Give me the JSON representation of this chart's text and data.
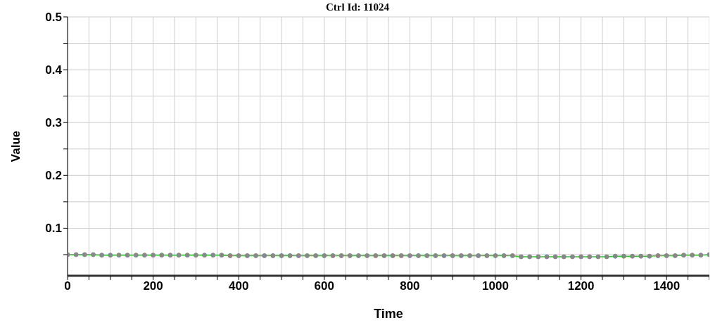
{
  "chart_data": {
    "type": "line",
    "title": "Ctrl Id: 11024",
    "xlabel": "Time",
    "ylabel": "Value",
    "x": [
      0,
      20,
      40,
      60,
      80,
      100,
      120,
      140,
      160,
      180,
      200,
      220,
      240,
      260,
      280,
      300,
      320,
      340,
      360,
      380,
      400,
      420,
      440,
      460,
      480,
      500,
      520,
      540,
      560,
      580,
      600,
      620,
      640,
      660,
      680,
      700,
      720,
      740,
      760,
      780,
      800,
      820,
      840,
      860,
      880,
      900,
      920,
      940,
      960,
      980,
      1000,
      1020,
      1040,
      1060,
      1080,
      1100,
      1120,
      1140,
      1160,
      1180,
      1200,
      1220,
      1240,
      1260,
      1280,
      1300,
      1320,
      1340,
      1360,
      1380,
      1400,
      1420,
      1440,
      1460,
      1480,
      1500
    ],
    "series": [
      {
        "color": "#22cc22",
        "values": [
          0.05,
          0.05,
          0.05,
          0.05,
          0.049,
          0.049,
          0.049,
          0.049,
          0.049,
          0.049,
          0.049,
          0.049,
          0.049,
          0.049,
          0.049,
          0.049,
          0.049,
          0.049,
          0.049,
          0.048,
          0.048,
          0.048,
          0.048,
          0.048,
          0.048,
          0.048,
          0.048,
          0.048,
          0.048,
          0.048,
          0.048,
          0.048,
          0.048,
          0.048,
          0.048,
          0.048,
          0.048,
          0.048,
          0.048,
          0.048,
          0.048,
          0.048,
          0.048,
          0.048,
          0.048,
          0.048,
          0.048,
          0.048,
          0.048,
          0.048,
          0.048,
          0.048,
          0.048,
          0.046,
          0.046,
          0.046,
          0.046,
          0.046,
          0.046,
          0.046,
          0.046,
          0.046,
          0.046,
          0.046,
          0.047,
          0.047,
          0.047,
          0.047,
          0.047,
          0.048,
          0.048,
          0.048,
          0.049,
          0.049,
          0.049,
          0.05
        ]
      }
    ],
    "xlim": [
      0,
      1500
    ],
    "xticks": [
      0,
      {
        "value": 50,
        "label": null
      },
      {
        "value": 100,
        "label": null
      },
      {
        "value": 150,
        "label": null
      },
      200,
      {
        "value": 250,
        "label": null
      },
      {
        "value": 300,
        "label": null
      },
      {
        "value": 350,
        "label": null
      },
      400,
      {
        "value": 450,
        "label": null
      },
      {
        "value": 500,
        "label": null
      },
      {
        "value": 550,
        "label": null
      },
      600,
      {
        "value": 650,
        "label": null
      },
      {
        "value": 700,
        "label": null
      },
      {
        "value": 750,
        "label": null
      },
      800,
      {
        "value": 850,
        "label": null
      },
      {
        "value": 900,
        "label": null
      },
      {
        "value": 950,
        "label": null
      },
      1000,
      {
        "value": 1050,
        "label": null
      },
      {
        "value": 1100,
        "label": null
      },
      {
        "value": 1150,
        "label": null
      },
      1200,
      {
        "value": 1250,
        "label": null
      },
      {
        "value": 1300,
        "label": null
      },
      {
        "value": 1350,
        "label": null
      },
      1400,
      {
        "value": 1450,
        "label": null
      },
      {
        "value": 1500,
        "label": null
      }
    ],
    "ylim": [
      0.01,
      0.5
    ],
    "yticks": [
      {
        "value": 0.05,
        "label": null
      },
      0.1,
      {
        "value": 0.15,
        "label": null
      },
      0.2,
      {
        "value": 0.25,
        "label": null
      },
      0.3,
      {
        "value": 0.35,
        "label": null
      },
      0.4,
      {
        "value": 0.45,
        "label": null
      },
      0.5
    ],
    "grid": true,
    "marker": "circle",
    "line_style": "solid"
  }
}
